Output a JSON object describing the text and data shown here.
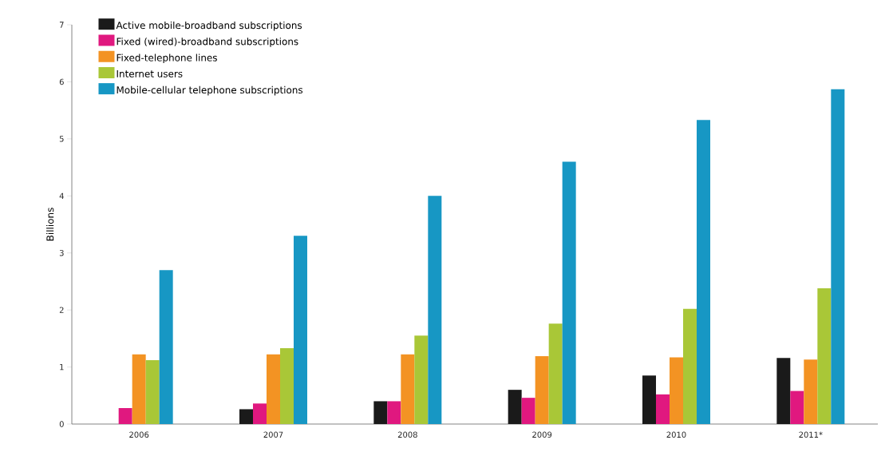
{
  "chart_data": {
    "type": "bar",
    "ylabel": "Billions",
    "categories": [
      "2006",
      "2007",
      "2008",
      "2009",
      "2010",
      "2011*"
    ],
    "series": [
      {
        "name": "Active mobile-broadband subscriptions",
        "color": "#1a1a1a",
        "values": [
          0,
          0.26,
          0.4,
          0.6,
          0.85,
          1.16
        ]
      },
      {
        "name": "Fixed (wired)-broadband subscriptions",
        "color": "#e0187f",
        "values": [
          0.28,
          0.36,
          0.4,
          0.46,
          0.52,
          0.58
        ]
      },
      {
        "name": "Fixed-telephone lines",
        "color": "#f39323",
        "values": [
          1.22,
          1.22,
          1.22,
          1.19,
          1.17,
          1.13
        ]
      },
      {
        "name": "Internet users",
        "color": "#a9c737",
        "values": [
          1.12,
          1.33,
          1.55,
          1.76,
          2.02,
          2.38
        ]
      },
      {
        "name": "Mobile-cellular telephone subscriptions",
        "color": "#1797c4",
        "values": [
          2.7,
          3.3,
          4.0,
          4.6,
          5.33,
          5.87
        ]
      }
    ],
    "ylim": [
      0,
      7
    ],
    "yticks": [
      0,
      1,
      2,
      3,
      4,
      5,
      6,
      7
    ],
    "legend": "top left",
    "grid": false
  }
}
